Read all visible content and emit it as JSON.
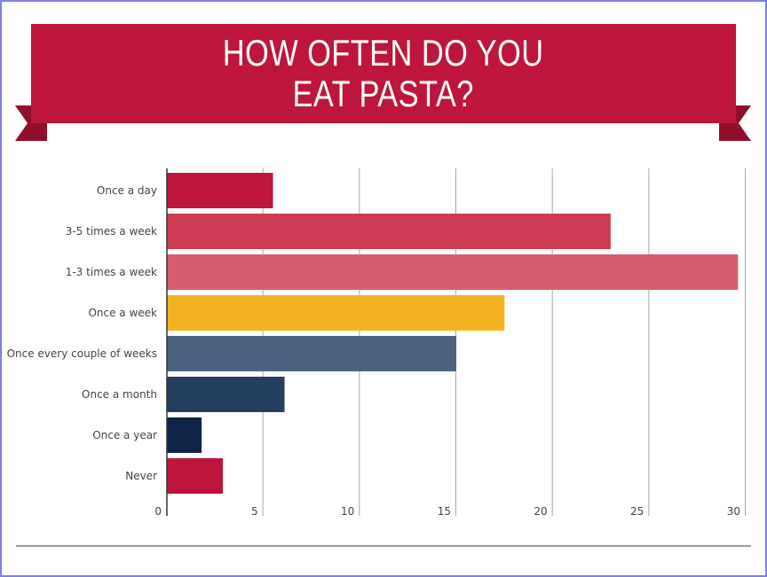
{
  "title_lines": [
    "HOW OFTEN DO YOU",
    "EAT PASTA?"
  ],
  "colors": {
    "banner": "#bd153c",
    "banner_fold": "#8f1028",
    "grid": "#a8a8a8",
    "axis": "#333333",
    "label": "#444444"
  },
  "chart_data": {
    "type": "bar",
    "orientation": "horizontal",
    "title": "HOW OFTEN DO YOU EAT PASTA?",
    "categories": [
      "Once a day",
      "3-5 times a week",
      "1-3 times a week",
      "Once a week",
      "Once every couple of weeks",
      "Once a month",
      "Once a year",
      "Never"
    ],
    "values": [
      5.5,
      23,
      29.6,
      17.5,
      15,
      6.1,
      1.8,
      2.9
    ],
    "bar_colors": [
      "#bd153c",
      "#cc3c52",
      "#d75d6d",
      "#f5b324",
      "#4c6380",
      "#253f60",
      "#0d2448",
      "#bd153c"
    ],
    "xlim": [
      0,
      30
    ],
    "xticks": [
      0,
      5,
      10,
      15,
      20,
      25,
      30
    ],
    "grid": true,
    "xlabel": "",
    "ylabel": ""
  }
}
